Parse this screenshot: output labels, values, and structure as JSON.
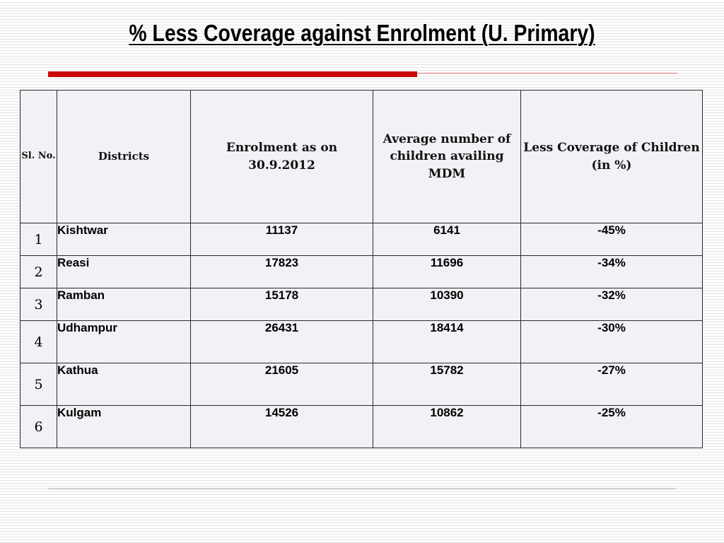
{
  "slide": {
    "title": "% Less Coverage against Enrolment (U. Primary)"
  },
  "table": {
    "headers": {
      "sl": "Sl. No.",
      "district": "Districts",
      "enrolment": "Enrolment as on 30.9.2012",
      "average": "Average number of children availing MDM",
      "coverage": "Less Coverage of Children  (in %)"
    },
    "rows": [
      {
        "sl": "1",
        "district": "Kishtwar",
        "enrolment": "11137",
        "average": "6141",
        "coverage": "-45%"
      },
      {
        "sl": "2",
        "district": "Reasi",
        "enrolment": "17823",
        "average": "11696",
        "coverage": "-34%"
      },
      {
        "sl": "3",
        "district": "Ramban",
        "enrolment": "15178",
        "average": "10390",
        "coverage": "-32%"
      },
      {
        "sl": "4",
        "district": "Udhampur",
        "enrolment": "26431",
        "average": "18414",
        "coverage": "-30%"
      },
      {
        "sl": "5",
        "district": "Kathua",
        "enrolment": "21605",
        "average": "15782",
        "coverage": "-27%"
      },
      {
        "sl": "6",
        "district": "Kulgam",
        "enrolment": "14526",
        "average": "10862",
        "coverage": "-25%"
      }
    ]
  }
}
